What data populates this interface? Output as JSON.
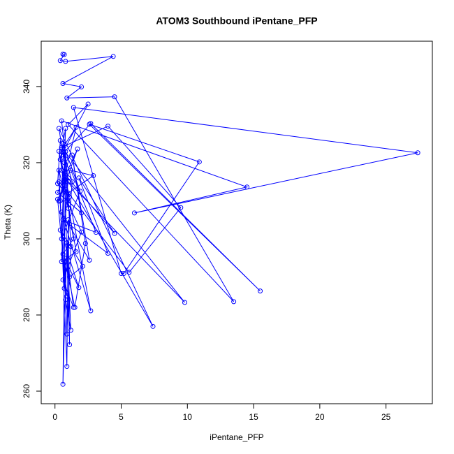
{
  "chart_data": {
    "type": "line",
    "marker": "circle",
    "title": "ATOM3 Southbound iPentane_PFP",
    "x_label": "iPentane_PFP",
    "y_label": "Theta (K)",
    "color": "#0000ff",
    "x": [
      0.6,
      0.7,
      0.4,
      0.8,
      4.4,
      0.6,
      2.0,
      0.9,
      4.5,
      13.5,
      1.0,
      2.5,
      0.5,
      2.7,
      15.5,
      2.6,
      10.9,
      5.2,
      5.0,
      1.4,
      27.4,
      6.0,
      14.5,
      0.5,
      1.0,
      9.8,
      0.5,
      4.0,
      9.5,
      5.6,
      0.8,
      0.3,
      0.8,
      1.2,
      0.9,
      0.6,
      0.8,
      0.4,
      0.9,
      1.0,
      1.1,
      0.7,
      0.3,
      7.4,
      0.5,
      4.5,
      1.8,
      4.0,
      0.6,
      3.1,
      1.2,
      2.9,
      1.0,
      2.7,
      0.5,
      2.6,
      1.3,
      2.3,
      1.5,
      0.7,
      1.8,
      0.4,
      2.1,
      1.1,
      1.4,
      0.6,
      2.0,
      0.9,
      2.0,
      0.2,
      1.7,
      0.3,
      1.6,
      0.5,
      0.9,
      1.2,
      0.8,
      0.5,
      1.6,
      0.3,
      1.1,
      0.2,
      0.4,
      1.3,
      0.7,
      0.3,
      1.0,
      0.6,
      1.9,
      0.5,
      0.8,
      0.4,
      1.4,
      0.6,
      1.0,
      0.2,
      0.9
    ],
    "values": [
      348.5,
      348.4,
      346.8,
      346.6,
      347.9,
      340.8,
      339.9,
      337,
      337.3,
      283.5,
      330,
      335.4,
      322,
      330.3,
      286.3,
      330.1,
      320.2,
      290.9,
      290.9,
      334.5,
      322.6,
      306.8,
      313.6,
      331,
      315,
      283.3,
      324,
      329.6,
      308.2,
      291.2,
      313,
      315,
      284,
      276,
      299,
      261.8,
      321,
      310,
      266.5,
      305,
      272.2,
      320,
      329,
      277,
      318,
      301.4,
      316,
      296.2,
      305,
      301.7,
      318,
      316.6,
      312,
      281.1,
      307,
      294.4,
      322,
      298.8,
      282,
      295,
      287.2,
      302.3,
      292.8,
      290,
      282,
      289.2,
      301.8,
      310,
      306.8,
      312.2,
      323.6,
      309.9,
      329.3,
      323.5,
      275,
      298,
      322.9,
      294,
      296.6,
      323,
      311,
      314.5,
      325.8,
      315,
      287,
      318,
      308,
      325,
      312.5,
      300,
      329,
      320.8,
      300,
      296,
      316,
      310.4,
      285
    ],
    "xlim": [
      -1.04,
      28.5
    ],
    "ylim": [
      256.7,
      351.9
    ],
    "xticks": [
      0,
      5,
      10,
      15,
      20,
      25
    ],
    "yticks": [
      260,
      280,
      300,
      320,
      340
    ]
  }
}
